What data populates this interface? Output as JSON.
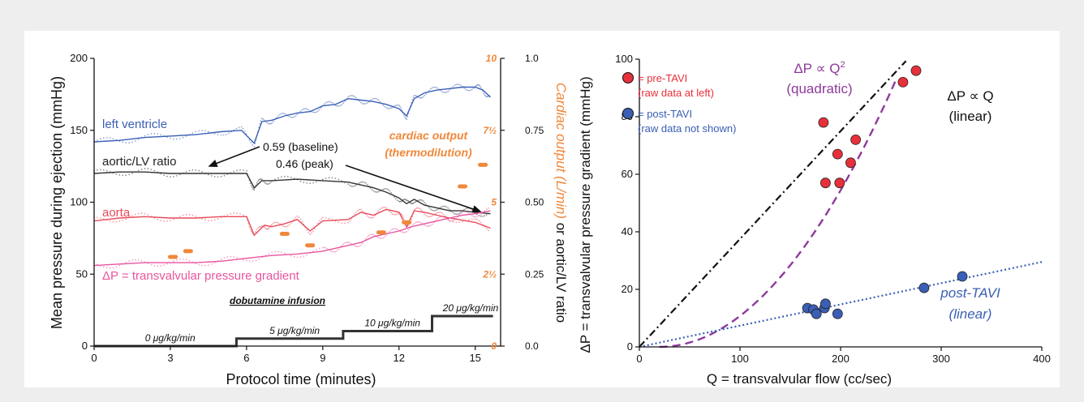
{
  "chart_data": [
    {
      "type": "line",
      "xlabel": "Protocol time (minutes)",
      "ylabel": "Mean pressure during ejection (mmHg)",
      "y2label_part1": "Cardiac output (L/min)",
      "y2label_part2": " or aortic/LV ratio",
      "xlim": [
        0,
        16
      ],
      "ylim": [
        0,
        200
      ],
      "y2lim": [
        0,
        1.0
      ],
      "xticks": [
        "0",
        "3",
        "6",
        "9",
        "12",
        "15"
      ],
      "xtick_values": [
        0,
        3,
        6,
        9,
        12,
        15
      ],
      "yticks": [
        "0",
        "50",
        "100",
        "150",
        "200"
      ],
      "ytick_values": [
        0,
        50,
        100,
        150,
        200
      ],
      "y2_co_ticks": [
        "0",
        "2½",
        "5",
        "7½",
        "10"
      ],
      "y2_ratio_ticks": [
        "0.0",
        "0.25",
        "0.50",
        "0.75",
        "1.0"
      ],
      "series": [
        {
          "name": "left ventricle",
          "color": "#3a5fb5",
          "x": [
            0,
            1,
            2,
            3,
            4,
            5,
            5.8,
            6.3,
            6.6,
            7,
            7.5,
            8,
            8.5,
            9,
            9.5,
            10,
            10.5,
            11,
            11.5,
            12,
            12.3,
            12.6,
            13,
            13.5,
            14,
            14.5,
            15,
            15.3,
            15.6
          ],
          "y": [
            142,
            143,
            145,
            146,
            147,
            149,
            150,
            141,
            156,
            157,
            160,
            162,
            163,
            167,
            168,
            172,
            171,
            170,
            168,
            165,
            160,
            172,
            176,
            178,
            179,
            180,
            180,
            178,
            173
          ]
        },
        {
          "name": "aortic/LV ratio",
          "color": "#333333",
          "x": [
            0,
            1,
            2,
            3,
            4,
            5,
            6,
            6.3,
            6.6,
            7,
            8,
            9,
            10,
            10.5,
            11,
            11.5,
            12,
            12.3,
            12.6,
            13,
            13.5,
            14,
            14.5,
            15,
            15.6
          ],
          "y": [
            0.6,
            0.605,
            0.605,
            0.6,
            0.6,
            0.6,
            0.6,
            0.55,
            0.575,
            0.575,
            0.58,
            0.575,
            0.57,
            0.56,
            0.55,
            0.535,
            0.515,
            0.495,
            0.51,
            0.49,
            0.48,
            0.47,
            0.47,
            0.465,
            0.46
          ]
        },
        {
          "name": "aorta",
          "color": "#e84a5a",
          "x": [
            0,
            1,
            2,
            3,
            4,
            5,
            6,
            6.3,
            6.7,
            7,
            7.5,
            8,
            8.5,
            9,
            10,
            10.5,
            11,
            11.5,
            12,
            12.3,
            12.6,
            13,
            13.5,
            14,
            15,
            15.6
          ],
          "y": [
            87,
            89,
            90,
            89,
            89,
            90,
            90,
            77,
            84,
            83,
            85,
            88,
            80,
            87,
            88,
            93,
            91,
            95,
            93,
            83,
            94,
            93,
            91,
            89,
            86,
            82
          ]
        },
        {
          "name": "ΔP = transvalvular pressure gradient",
          "color": "#e8559e",
          "x": [
            0,
            1,
            2,
            3,
            4,
            5,
            6,
            7,
            8,
            9,
            9.5,
            10,
            10.5,
            11,
            11.5,
            12,
            12.5,
            13,
            13.5,
            14,
            14.5,
            15,
            15.6
          ],
          "y": [
            56,
            57,
            58,
            58,
            58,
            59,
            61,
            63,
            64,
            66,
            68,
            70,
            72,
            76,
            78,
            80,
            83,
            85,
            87,
            89,
            91,
            92,
            94
          ]
        }
      ],
      "cardiac_output": {
        "name": "cardiac output (thermodilution)",
        "color": "#f0883a",
        "x": [
          3.1,
          3.7,
          7.5,
          8.5,
          11.3,
          12.3,
          14.5,
          15.3
        ],
        "y": [
          3.1,
          3.3,
          3.9,
          3.5,
          3.95,
          4.3,
          5.55,
          6.3
        ]
      },
      "dobutamine": {
        "title": "dobutamine infusion",
        "steps": [
          {
            "label": "0 μg/kg/min",
            "x0": 0,
            "x1": 5.6,
            "level": 0
          },
          {
            "label": "5 μg/kg/min",
            "x0": 5.6,
            "x1": 9.8,
            "level": 5
          },
          {
            "label": "10 μg/kg/min",
            "x0": 9.8,
            "x1": 13.3,
            "level": 10
          },
          {
            "label": "20 μg/kg/min",
            "x0": 13.3,
            "x1": 15.7,
            "level": 20
          }
        ]
      },
      "annotations": [
        {
          "text": "0.59 (baseline)",
          "x": 6.5,
          "ratio": 0.59
        },
        {
          "text": "0.46 (peak)",
          "x": 10,
          "ratio": 0.46
        }
      ],
      "labels": {
        "lv": "left ventricle",
        "ratio": "aortic/LV ratio",
        "aorta": "aorta",
        "gradient": "ΔP = transvalvular pressure gradient",
        "co_line1": "cardiac output",
        "co_line2": "(thermodilution)",
        "dobutamine": "dobutamine infusion"
      }
    },
    {
      "type": "scatter",
      "xlabel": "Q = transvalvular flow (cc/sec)",
      "ylabel": "ΔP = transvalvular pressure gradient (mmHg)",
      "xlim": [
        0,
        400
      ],
      "ylim": [
        0,
        100
      ],
      "xticks": [
        "0",
        "100",
        "200",
        "300",
        "400"
      ],
      "xtick_values": [
        0,
        100,
        200,
        300,
        400
      ],
      "yticks": [
        "0",
        "20",
        "40",
        "60",
        "80",
        "100"
      ],
      "ytick_values": [
        0,
        20,
        40,
        60,
        80,
        100
      ],
      "series": [
        {
          "name": "= pre-TAVI",
          "note": "(raw data at left)",
          "color": "#e8303a",
          "points": [
            [
              183,
              78
            ],
            [
              185,
              57
            ],
            [
              197,
              67
            ],
            [
              199,
              57
            ],
            [
              210,
              64
            ],
            [
              215,
              72
            ],
            [
              262,
              92
            ],
            [
              275,
              96
            ]
          ]
        },
        {
          "name": "= post-TAVI",
          "note": "(raw data not shown)",
          "color": "#3a5fb5",
          "points": [
            [
              167,
              13.5
            ],
            [
              173,
              13
            ],
            [
              176,
              11.5
            ],
            [
              184,
              13.5
            ],
            [
              185,
              15
            ],
            [
              197,
              11.5
            ],
            [
              283,
              20.5
            ],
            [
              321,
              24.5
            ]
          ]
        }
      ],
      "fits": [
        {
          "label": "ΔP ∝ Q",
          "sub": "(linear)",
          "kind": "linear",
          "color": "#111111",
          "slope": 0.375
        },
        {
          "label": "ΔP ∝ Q",
          "label_sup": "2",
          "sub": "(quadratic)",
          "kind": "quadratic",
          "color": "#8e3a9c",
          "q0": 20,
          "k": 0.00168
        },
        {
          "label": "post-TAVI",
          "sub": "(linear)",
          "kind": "linear",
          "color": "#3a5fb5",
          "slope": 0.0738
        }
      ]
    }
  ]
}
